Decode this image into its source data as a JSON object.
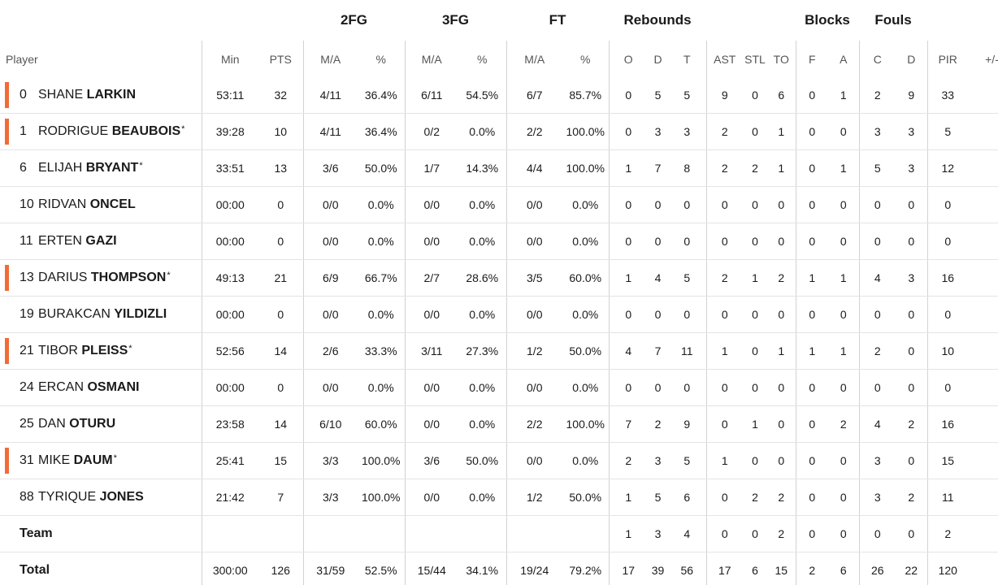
{
  "group_headers": {
    "fg2": "2FG",
    "fg3": "3FG",
    "ft": "FT",
    "rebounds": "Rebounds",
    "blocks": "Blocks",
    "fouls": "Fouls"
  },
  "column_headers": {
    "player": "Player",
    "min": "Min",
    "pts": "PTS",
    "fg2_ma": "M/A",
    "fg2_pct": "%",
    "fg3_ma": "M/A",
    "fg3_pct": "%",
    "ft_ma": "M/A",
    "ft_pct": "%",
    "reb_o": "O",
    "reb_d": "D",
    "reb_t": "T",
    "ast": "AST",
    "stl": "STL",
    "to": "TO",
    "blk_f": "F",
    "blk_a": "A",
    "foul_c": "C",
    "foul_d": "D",
    "pir": "PIR",
    "plus_minus": "+/-"
  },
  "players": [
    {
      "number": "0",
      "first": "SHANE",
      "last": "LARKIN",
      "star": "",
      "starter": true,
      "min": "53:11",
      "pts": "32",
      "fg2_ma": "4/11",
      "fg2_pct": "36.4%",
      "fg3_ma": "6/11",
      "fg3_pct": "54.5%",
      "ft_ma": "6/7",
      "ft_pct": "85.7%",
      "reb_o": "0",
      "reb_d": "5",
      "reb_t": "5",
      "ast": "9",
      "stl": "0",
      "to": "6",
      "blk_f": "0",
      "blk_a": "1",
      "foul_c": "2",
      "foul_d": "9",
      "pir": "33",
      "pm": ""
    },
    {
      "number": "1",
      "first": "RODRIGUE",
      "last": "BEAUBOIS",
      "star": "*",
      "starter": true,
      "min": "39:28",
      "pts": "10",
      "fg2_ma": "4/11",
      "fg2_pct": "36.4%",
      "fg3_ma": "0/2",
      "fg3_pct": "0.0%",
      "ft_ma": "2/2",
      "ft_pct": "100.0%",
      "reb_o": "0",
      "reb_d": "3",
      "reb_t": "3",
      "ast": "2",
      "stl": "0",
      "to": "1",
      "blk_f": "0",
      "blk_a": "0",
      "foul_c": "3",
      "foul_d": "3",
      "pir": "5",
      "pm": ""
    },
    {
      "number": "6",
      "first": "ELIJAH",
      "last": "BRYANT",
      "star": "*",
      "starter": false,
      "min": "33:51",
      "pts": "13",
      "fg2_ma": "3/6",
      "fg2_pct": "50.0%",
      "fg3_ma": "1/7",
      "fg3_pct": "14.3%",
      "ft_ma": "4/4",
      "ft_pct": "100.0%",
      "reb_o": "1",
      "reb_d": "7",
      "reb_t": "8",
      "ast": "2",
      "stl": "2",
      "to": "1",
      "blk_f": "0",
      "blk_a": "1",
      "foul_c": "5",
      "foul_d": "3",
      "pir": "12",
      "pm": ""
    },
    {
      "number": "10",
      "first": "RIDVAN",
      "last": "ONCEL",
      "star": "",
      "starter": false,
      "min": "00:00",
      "pts": "0",
      "fg2_ma": "0/0",
      "fg2_pct": "0.0%",
      "fg3_ma": "0/0",
      "fg3_pct": "0.0%",
      "ft_ma": "0/0",
      "ft_pct": "0.0%",
      "reb_o": "0",
      "reb_d": "0",
      "reb_t": "0",
      "ast": "0",
      "stl": "0",
      "to": "0",
      "blk_f": "0",
      "blk_a": "0",
      "foul_c": "0",
      "foul_d": "0",
      "pir": "0",
      "pm": ""
    },
    {
      "number": "11",
      "first": "ERTEN",
      "last": "GAZI",
      "star": "",
      "starter": false,
      "min": "00:00",
      "pts": "0",
      "fg2_ma": "0/0",
      "fg2_pct": "0.0%",
      "fg3_ma": "0/0",
      "fg3_pct": "0.0%",
      "ft_ma": "0/0",
      "ft_pct": "0.0%",
      "reb_o": "0",
      "reb_d": "0",
      "reb_t": "0",
      "ast": "0",
      "stl": "0",
      "to": "0",
      "blk_f": "0",
      "blk_a": "0",
      "foul_c": "0",
      "foul_d": "0",
      "pir": "0",
      "pm": ""
    },
    {
      "number": "13",
      "first": "DARIUS",
      "last": "THOMPSON",
      "star": "*",
      "starter": true,
      "min": "49:13",
      "pts": "21",
      "fg2_ma": "6/9",
      "fg2_pct": "66.7%",
      "fg3_ma": "2/7",
      "fg3_pct": "28.6%",
      "ft_ma": "3/5",
      "ft_pct": "60.0%",
      "reb_o": "1",
      "reb_d": "4",
      "reb_t": "5",
      "ast": "2",
      "stl": "1",
      "to": "2",
      "blk_f": "1",
      "blk_a": "1",
      "foul_c": "4",
      "foul_d": "3",
      "pir": "16",
      "pm": ""
    },
    {
      "number": "19",
      "first": "BURAKCAN",
      "last": "YILDIZLI",
      "star": "",
      "starter": false,
      "min": "00:00",
      "pts": "0",
      "fg2_ma": "0/0",
      "fg2_pct": "0.0%",
      "fg3_ma": "0/0",
      "fg3_pct": "0.0%",
      "ft_ma": "0/0",
      "ft_pct": "0.0%",
      "reb_o": "0",
      "reb_d": "0",
      "reb_t": "0",
      "ast": "0",
      "stl": "0",
      "to": "0",
      "blk_f": "0",
      "blk_a": "0",
      "foul_c": "0",
      "foul_d": "0",
      "pir": "0",
      "pm": ""
    },
    {
      "number": "21",
      "first": "TIBOR",
      "last": "PLEISS",
      "star": "*",
      "starter": true,
      "min": "52:56",
      "pts": "14",
      "fg2_ma": "2/6",
      "fg2_pct": "33.3%",
      "fg3_ma": "3/11",
      "fg3_pct": "27.3%",
      "ft_ma": "1/2",
      "ft_pct": "50.0%",
      "reb_o": "4",
      "reb_d": "7",
      "reb_t": "11",
      "ast": "1",
      "stl": "0",
      "to": "1",
      "blk_f": "1",
      "blk_a": "1",
      "foul_c": "2",
      "foul_d": "0",
      "pir": "10",
      "pm": ""
    },
    {
      "number": "24",
      "first": "ERCAN",
      "last": "OSMANI",
      "star": "",
      "starter": false,
      "min": "00:00",
      "pts": "0",
      "fg2_ma": "0/0",
      "fg2_pct": "0.0%",
      "fg3_ma": "0/0",
      "fg3_pct": "0.0%",
      "ft_ma": "0/0",
      "ft_pct": "0.0%",
      "reb_o": "0",
      "reb_d": "0",
      "reb_t": "0",
      "ast": "0",
      "stl": "0",
      "to": "0",
      "blk_f": "0",
      "blk_a": "0",
      "foul_c": "0",
      "foul_d": "0",
      "pir": "0",
      "pm": ""
    },
    {
      "number": "25",
      "first": "DAN",
      "last": "OTURU",
      "star": "",
      "starter": false,
      "min": "23:58",
      "pts": "14",
      "fg2_ma": "6/10",
      "fg2_pct": "60.0%",
      "fg3_ma": "0/0",
      "fg3_pct": "0.0%",
      "ft_ma": "2/2",
      "ft_pct": "100.0%",
      "reb_o": "7",
      "reb_d": "2",
      "reb_t": "9",
      "ast": "0",
      "stl": "1",
      "to": "0",
      "blk_f": "0",
      "blk_a": "2",
      "foul_c": "4",
      "foul_d": "2",
      "pir": "16",
      "pm": ""
    },
    {
      "number": "31",
      "first": "MIKE",
      "last": "DAUM",
      "star": "*",
      "starter": true,
      "min": "25:41",
      "pts": "15",
      "fg2_ma": "3/3",
      "fg2_pct": "100.0%",
      "fg3_ma": "3/6",
      "fg3_pct": "50.0%",
      "ft_ma": "0/0",
      "ft_pct": "0.0%",
      "reb_o": "2",
      "reb_d": "3",
      "reb_t": "5",
      "ast": "1",
      "stl": "0",
      "to": "0",
      "blk_f": "0",
      "blk_a": "0",
      "foul_c": "3",
      "foul_d": "0",
      "pir": "15",
      "pm": ""
    },
    {
      "number": "88",
      "first": "TYRIQUE",
      "last": "JONES",
      "star": "",
      "starter": false,
      "min": "21:42",
      "pts": "7",
      "fg2_ma": "3/3",
      "fg2_pct": "100.0%",
      "fg3_ma": "0/0",
      "fg3_pct": "0.0%",
      "ft_ma": "1/2",
      "ft_pct": "50.0%",
      "reb_o": "1",
      "reb_d": "5",
      "reb_t": "6",
      "ast": "0",
      "stl": "2",
      "to": "2",
      "blk_f": "0",
      "blk_a": "0",
      "foul_c": "3",
      "foul_d": "2",
      "pir": "11",
      "pm": ""
    }
  ],
  "team_row": {
    "label": "Team",
    "min": "",
    "pts": "",
    "fg2_ma": "",
    "fg2_pct": "",
    "fg3_ma": "",
    "fg3_pct": "",
    "ft_ma": "",
    "ft_pct": "",
    "reb_o": "1",
    "reb_d": "3",
    "reb_t": "4",
    "ast": "0",
    "stl": "0",
    "to": "2",
    "blk_f": "0",
    "blk_a": "0",
    "foul_c": "0",
    "foul_d": "0",
    "pir": "2",
    "pm": ""
  },
  "total_row": {
    "label": "Total",
    "min": "300:00",
    "pts": "126",
    "fg2_ma": "31/59",
    "fg2_pct": "52.5%",
    "fg3_ma": "15/44",
    "fg3_pct": "34.1%",
    "ft_ma": "19/24",
    "ft_pct": "79.2%",
    "reb_o": "17",
    "reb_d": "39",
    "reb_t": "56",
    "ast": "17",
    "stl": "6",
    "to": "15",
    "blk_f": "2",
    "blk_a": "6",
    "foul_c": "26",
    "foul_d": "22",
    "pir": "120",
    "pm": ""
  },
  "colors": {
    "starter_accent": "#f26a36",
    "divider": "#d2d2d2",
    "row_border": "#e4e4e4"
  }
}
